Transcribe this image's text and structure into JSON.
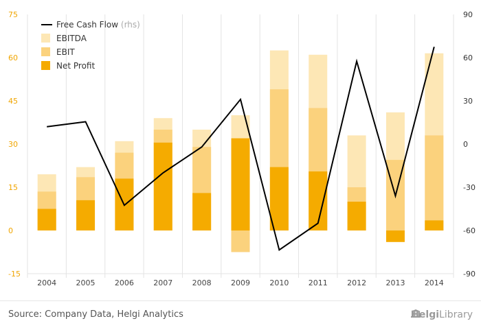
{
  "chart_data": {
    "type": "bar",
    "categories": [
      "2004",
      "2005",
      "2006",
      "2007",
      "2008",
      "2009",
      "2010",
      "2011",
      "2012",
      "2013",
      "2014"
    ],
    "series": [
      {
        "name": "EBITDA",
        "kind": "bar",
        "axis": "left",
        "color": "#fde7b5",
        "values": [
          19.5,
          22,
          31,
          39,
          35,
          40,
          62.5,
          61,
          33,
          41,
          61.5
        ]
      },
      {
        "name": "EBIT",
        "kind": "bar",
        "axis": "left",
        "color": "#fbd27d",
        "values": [
          13.5,
          18.5,
          27,
          35,
          29,
          -7.5,
          49,
          42.5,
          15,
          24.5,
          33
        ]
      },
      {
        "name": "Net Profit",
        "kind": "bar",
        "axis": "left",
        "color": "#f5ab00",
        "values": [
          7.5,
          10.5,
          18,
          30.5,
          13,
          32,
          22,
          20.5,
          10,
          -4,
          3.5
        ]
      },
      {
        "name": "Free Cash Flow",
        "name_suffix": "(rhs)",
        "kind": "line",
        "axis": "right",
        "color": "#000000",
        "values": [
          12,
          15.5,
          -42.5,
          -20,
          -2,
          31,
          -73.5,
          -55,
          57.5,
          -36,
          67.5
        ]
      }
    ],
    "y_left": {
      "min": -15,
      "max": 75,
      "ticks": [
        -15,
        0,
        15,
        30,
        45,
        60,
        75
      ],
      "tick_color": "#f0a500"
    },
    "y_right": {
      "min": -90,
      "max": 90,
      "ticks": [
        -90,
        -60,
        -30,
        0,
        30,
        60,
        90
      ],
      "tick_color": "#333333"
    },
    "grid": "vertical",
    "legend_position": "top-left"
  },
  "legend": {
    "fcf_label": "Free Cash Flow",
    "fcf_suffix": "(rhs)",
    "ebitda_label": "EBITDA",
    "ebit_label": "EBIT",
    "net_label": "Net Profit"
  },
  "footer": {
    "source": "Source: Company Data, Helgi Analytics",
    "brand_helgi": "Helgi",
    "brand_library": "Library"
  }
}
